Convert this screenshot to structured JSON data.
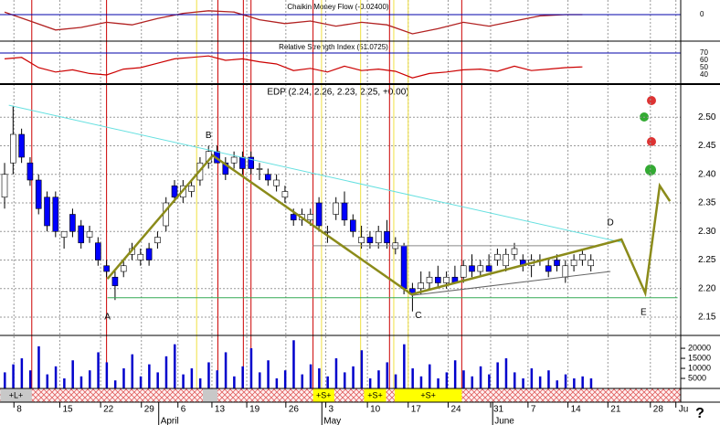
{
  "chart_data": {
    "type": "candlestick",
    "title": "EDP (2.24, 2.26, 2.23, 2.25, +0.00)",
    "xlim": [
      -0.54,
      79.57
    ],
    "ylim": [
      2.118,
      2.558
    ],
    "yticks": [
      {
        "value": 2.15,
        "label": "2.15"
      },
      {
        "value": 2.2,
        "label": "2.20"
      },
      {
        "value": 2.25,
        "label": "2.25"
      },
      {
        "value": 2.3,
        "label": "2.30"
      },
      {
        "value": 2.35,
        "label": "2.35"
      },
      {
        "value": 2.4,
        "label": "2.40"
      },
      {
        "value": 2.45,
        "label": "2.45"
      },
      {
        "value": 2.5,
        "label": "2.50"
      }
    ],
    "xticks": [
      {
        "value": 1.1,
        "label": "8"
      },
      {
        "value": 6.5,
        "label": "15"
      },
      {
        "value": 11.3,
        "label": "22"
      },
      {
        "value": 16.1,
        "label": "29"
      },
      {
        "value": 20.4,
        "label": "6"
      },
      {
        "value": 24.4,
        "label": "13"
      },
      {
        "value": 28.5,
        "label": "19"
      },
      {
        "value": 33.1,
        "label": "26"
      },
      {
        "value": 37.8,
        "label": "3"
      },
      {
        "value": 42.7,
        "label": "10"
      },
      {
        "value": 47.5,
        "label": "17"
      },
      {
        "value": 52.2,
        "label": "24"
      },
      {
        "value": 57.2,
        "label": "31"
      },
      {
        "value": 61.6,
        "label": "7"
      },
      {
        "value": 66.3,
        "label": "14"
      },
      {
        "value": 71,
        "label": "21"
      },
      {
        "value": 76,
        "label": "28"
      },
      {
        "value": 79,
        "label": "Ju"
      }
    ],
    "month_labels": [
      {
        "value": 19,
        "label": "April"
      },
      {
        "value": 38.2,
        "label": "May"
      },
      {
        "value": 58.3,
        "label": "June"
      }
    ],
    "up_color": "#ffffff",
    "down_color": "#0000ff",
    "x": [
      0,
      1,
      2,
      3,
      4,
      5,
      6,
      7,
      8,
      9,
      10,
      11,
      12,
      13,
      14,
      15,
      16,
      17,
      18,
      19,
      20,
      21,
      22,
      23,
      24,
      25,
      26,
      27,
      28,
      29,
      30,
      31,
      32,
      33,
      34,
      35,
      36,
      37,
      38,
      39,
      40,
      41,
      42,
      43,
      44,
      45,
      46,
      47,
      48,
      49,
      50,
      51,
      52,
      53,
      54,
      55,
      56,
      57,
      58,
      59,
      60,
      61,
      62,
      63,
      64,
      65,
      66,
      67,
      68,
      69
    ],
    "candles": [
      [
        2.36,
        2.42,
        2.34,
        2.4
      ],
      [
        2.42,
        2.52,
        2.4,
        2.47
      ],
      [
        2.47,
        2.48,
        2.42,
        2.43
      ],
      [
        2.42,
        2.43,
        2.38,
        2.39
      ],
      [
        2.39,
        2.4,
        2.33,
        2.34
      ],
      [
        2.36,
        2.37,
        2.3,
        2.31
      ],
      [
        2.36,
        2.37,
        2.29,
        2.3
      ],
      [
        2.29,
        2.3,
        2.27,
        2.3
      ],
      [
        2.33,
        2.34,
        2.29,
        2.3
      ],
      [
        2.31,
        2.32,
        2.27,
        2.28
      ],
      [
        2.29,
        2.31,
        2.28,
        2.3
      ],
      [
        2.28,
        2.29,
        2.24,
        2.25
      ],
      [
        2.24,
        2.25,
        2.22,
        2.23
      ],
      [
        2.22,
        2.23,
        2.18,
        2.205
      ],
      [
        2.23,
        2.25,
        2.22,
        2.24
      ],
      [
        2.26,
        2.28,
        2.25,
        2.27
      ],
      [
        2.25,
        2.27,
        2.24,
        2.26
      ],
      [
        2.27,
        2.28,
        2.24,
        2.25
      ],
      [
        2.28,
        2.3,
        2.27,
        2.29
      ],
      [
        2.31,
        2.36,
        2.3,
        2.35
      ],
      [
        2.38,
        2.39,
        2.35,
        2.36
      ],
      [
        2.36,
        2.39,
        2.35,
        2.38
      ],
      [
        2.37,
        2.39,
        2.36,
        2.38
      ],
      [
        2.39,
        2.43,
        2.38,
        2.42
      ],
      [
        2.42,
        2.45,
        2.41,
        2.44
      ],
      [
        2.44,
        2.45,
        2.42,
        2.42
      ],
      [
        2.42,
        2.43,
        2.39,
        2.4
      ],
      [
        2.42,
        2.44,
        2.41,
        2.43
      ],
      [
        2.43,
        2.44,
        2.4,
        2.41
      ],
      [
        2.43,
        2.44,
        2.4,
        2.41
      ],
      [
        2.41,
        2.42,
        2.39,
        2.41
      ],
      [
        2.4,
        2.41,
        2.38,
        2.39
      ],
      [
        2.38,
        2.4,
        2.37,
        2.39
      ],
      [
        2.36,
        2.38,
        2.35,
        2.37
      ],
      [
        2.33,
        2.34,
        2.31,
        2.32
      ],
      [
        2.32,
        2.34,
        2.31,
        2.33
      ],
      [
        2.32,
        2.34,
        2.31,
        2.33
      ],
      [
        2.35,
        2.36,
        2.3,
        2.31
      ],
      [
        2.3,
        2.31,
        2.28,
        2.3
      ],
      [
        2.33,
        2.36,
        2.32,
        2.35
      ],
      [
        2.35,
        2.37,
        2.31,
        2.32
      ],
      [
        2.32,
        2.33,
        2.29,
        2.3
      ],
      [
        2.28,
        2.31,
        2.27,
        2.29
      ],
      [
        2.29,
        2.3,
        2.27,
        2.28
      ],
      [
        2.28,
        2.31,
        2.27,
        2.3
      ],
      [
        2.3,
        2.32,
        2.27,
        2.28
      ],
      [
        2.27,
        2.29,
        2.26,
        2.28
      ],
      [
        2.275,
        2.28,
        2.19,
        2.2
      ],
      [
        2.2,
        2.21,
        2.16,
        2.19
      ],
      [
        2.2,
        2.23,
        2.19,
        2.21
      ],
      [
        2.21,
        2.23,
        2.2,
        2.22
      ],
      [
        2.22,
        2.24,
        2.2,
        2.21
      ],
      [
        2.21,
        2.23,
        2.2,
        2.22
      ],
      [
        2.22,
        2.24,
        2.21,
        2.21
      ],
      [
        2.22,
        2.25,
        2.21,
        2.24
      ],
      [
        2.24,
        2.26,
        2.22,
        2.23
      ],
      [
        2.23,
        2.25,
        2.22,
        2.24
      ],
      [
        2.24,
        2.26,
        2.23,
        2.23
      ],
      [
        2.25,
        2.27,
        2.24,
        2.26
      ],
      [
        2.24,
        2.27,
        2.23,
        2.26
      ],
      [
        2.26,
        2.28,
        2.25,
        2.27
      ],
      [
        2.25,
        2.26,
        2.23,
        2.24
      ],
      [
        2.24,
        2.26,
        2.22,
        2.25
      ],
      [
        2.25,
        2.26,
        2.24,
        2.25
      ],
      [
        2.24,
        2.25,
        2.22,
        2.23
      ],
      [
        2.25,
        2.26,
        2.23,
        2.24
      ],
      [
        2.22,
        2.25,
        2.21,
        2.24
      ],
      [
        2.24,
        2.26,
        2.23,
        2.25
      ],
      [
        2.25,
        2.27,
        2.24,
        2.26
      ],
      [
        2.24,
        2.26,
        2.23,
        2.25
      ]
    ],
    "volume": {
      "color": "#0000cc",
      "ylim": [
        0,
        26400
      ],
      "yticks": [
        5000,
        10000,
        15000,
        20000
      ],
      "values": [
        8000,
        12000,
        15000,
        9000,
        21000,
        7000,
        11000,
        5000,
        14000,
        6000,
        9000,
        18000,
        13000,
        4000,
        10000,
        17000,
        6000,
        12000,
        8000,
        16000,
        22000,
        7000,
        10000,
        5000,
        13000,
        9000,
        18000,
        6000,
        11000,
        20000,
        8000,
        14000,
        5000,
        9000,
        24000,
        7000,
        12000,
        10000,
        6000,
        15000,
        8000,
        11000,
        19000,
        5000,
        9000,
        13000,
        7000,
        22000,
        10000,
        6000,
        12000,
        5000,
        8000,
        14000,
        9000,
        6000,
        11000,
        7000,
        13000,
        15000,
        8000,
        5000,
        10000,
        6000,
        9000,
        4000,
        7000,
        5000,
        6000,
        5000
      ]
    },
    "chaikin": {
      "name": "Chaikin Money Flow (-0.02400)",
      "color": "#b22222",
      "ylim": [
        -0.2,
        0.1
      ],
      "yticks": [
        0
      ],
      "x": [
        0,
        3,
        6,
        9,
        12,
        15,
        18,
        21,
        24,
        27,
        30,
        33,
        36,
        39,
        42,
        45,
        48,
        51,
        54,
        57,
        60,
        63,
        66,
        68
      ],
      "values": [
        0.02,
        -0.05,
        -0.12,
        -0.1,
        -0.06,
        -0.08,
        -0.03,
        0.01,
        0.03,
        0.02,
        -0.04,
        -0.07,
        -0.05,
        -0.09,
        -0.06,
        -0.08,
        -0.15,
        -0.11,
        -0.06,
        -0.09,
        -0.05,
        -0.01,
        0.0,
        0.0
      ]
    },
    "rsi": {
      "name": "Relative Strength Index (51.0725)",
      "color": "#cc0000",
      "ylim": [
        27.5,
        86.25
      ],
      "yticks": [
        40,
        50,
        60,
        70
      ],
      "level": 70,
      "x": [
        0,
        2,
        4,
        6,
        8,
        10,
        12,
        14,
        16,
        18,
        20,
        22,
        24,
        26,
        28,
        30,
        32,
        34,
        36,
        38,
        40,
        42,
        44,
        46,
        48,
        50,
        52,
        54,
        56,
        58,
        60,
        62,
        64,
        66,
        68
      ],
      "values": [
        62,
        64,
        50,
        44,
        47,
        42,
        40,
        48,
        50,
        56,
        62,
        64,
        66,
        60,
        62,
        58,
        55,
        46,
        49,
        44,
        52,
        46,
        48,
        45,
        36,
        42,
        44,
        47,
        48,
        45,
        52,
        46,
        48,
        50,
        51
      ]
    },
    "signal_lines": {
      "red": [
        3.2,
        12,
        25.1,
        28.1,
        29,
        36.3,
        45.3,
        53.8
      ],
      "yellow": [
        22.6,
        37.3,
        41.9,
        45.8,
        47.5
      ]
    },
    "bands": [
      {
        "label": "+L+",
        "x0": -0.5,
        "x1": 3.2
      },
      {
        "label": "+S+",
        "x0": 36.3,
        "x1": 38.8
      },
      {
        "label": "+S+",
        "x0": 42.3,
        "x1": 44.9
      },
      {
        "label": "+S+",
        "x0": 45.9,
        "x1": 53.8
      }
    ],
    "wave": {
      "color": "#8b8b1a",
      "x": [
        12.1,
        24.5,
        47.9,
        72.6,
        75.4,
        77.1,
        78.3
      ],
      "values": [
        2.217,
        2.433,
        2.19,
        2.286,
        2.192,
        2.38,
        2.353
      ]
    },
    "trendline": {
      "color": "#66e0e0",
      "x": [
        0.5,
        72.6
      ],
      "values": [
        2.521,
        2.281
      ]
    },
    "support": {
      "color": "#33aa55",
      "x": [
        12.1,
        79.2
      ],
      "value": 2.184
    },
    "resistance": {
      "color": "#888888",
      "x": [
        36.3,
        69.4
      ],
      "value": 2.275
    },
    "channel": {
      "color": "#666666",
      "x": [
        47.9,
        71.3
      ],
      "values": [
        2.188,
        2.23
      ]
    },
    "wave_labels": [
      {
        "label": "A",
        "x": 12.1,
        "value": 2.15
      },
      {
        "label": "B",
        "x": 24,
        "value": 2.468
      },
      {
        "label": "C",
        "x": 48.7,
        "value": 2.153
      },
      {
        "label": "D",
        "x": 71.3,
        "value": 2.315
      },
      {
        "label": "E",
        "x": 75.2,
        "value": 2.158
      }
    ],
    "help": "?"
  }
}
